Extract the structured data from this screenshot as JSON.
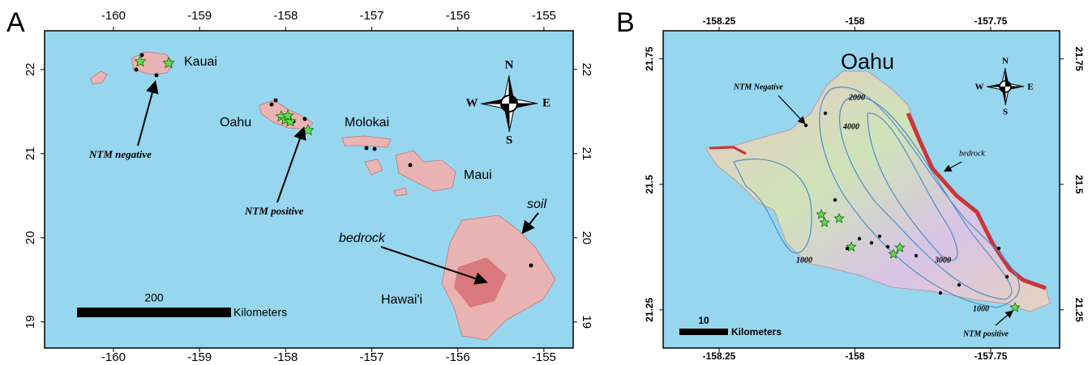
{
  "panels": [
    {
      "label": "A",
      "xlim": [
        -160.8,
        -154.66
      ],
      "ylim": [
        18.69,
        22.46
      ],
      "xticks": [
        -160,
        -159,
        -158,
        -157,
        -156,
        -155
      ],
      "yticks": [
        19,
        20,
        21,
        22
      ],
      "places": [
        "Kauai",
        "Oahu",
        "Molokai",
        "Maui",
        "Hawai'i"
      ],
      "annotations": [
        "NTM negative",
        "NTM positive",
        "bedrock",
        "soil"
      ],
      "scale_bar": {
        "distance": 200,
        "unit": "Kilometers"
      },
      "compass": [
        "N",
        "S",
        "E",
        "W"
      ]
    },
    {
      "label": "B",
      "title": "Oahu",
      "xlim": [
        -158.353,
        -157.623
      ],
      "ylim": [
        21.174,
        21.806
      ],
      "xticks": [
        -158.25,
        -158,
        -157.75
      ],
      "yticks": [
        21.25,
        21.5,
        21.75
      ],
      "annotations": [
        "NTM Negative",
        "bedrock",
        "NTM positive"
      ],
      "contours": [
        2000,
        4000,
        1000,
        3000,
        1000
      ],
      "scale_bar": {
        "distance": 10,
        "unit": "Kilometers"
      },
      "compass": [
        "N",
        "S",
        "W",
        "E"
      ]
    }
  ]
}
